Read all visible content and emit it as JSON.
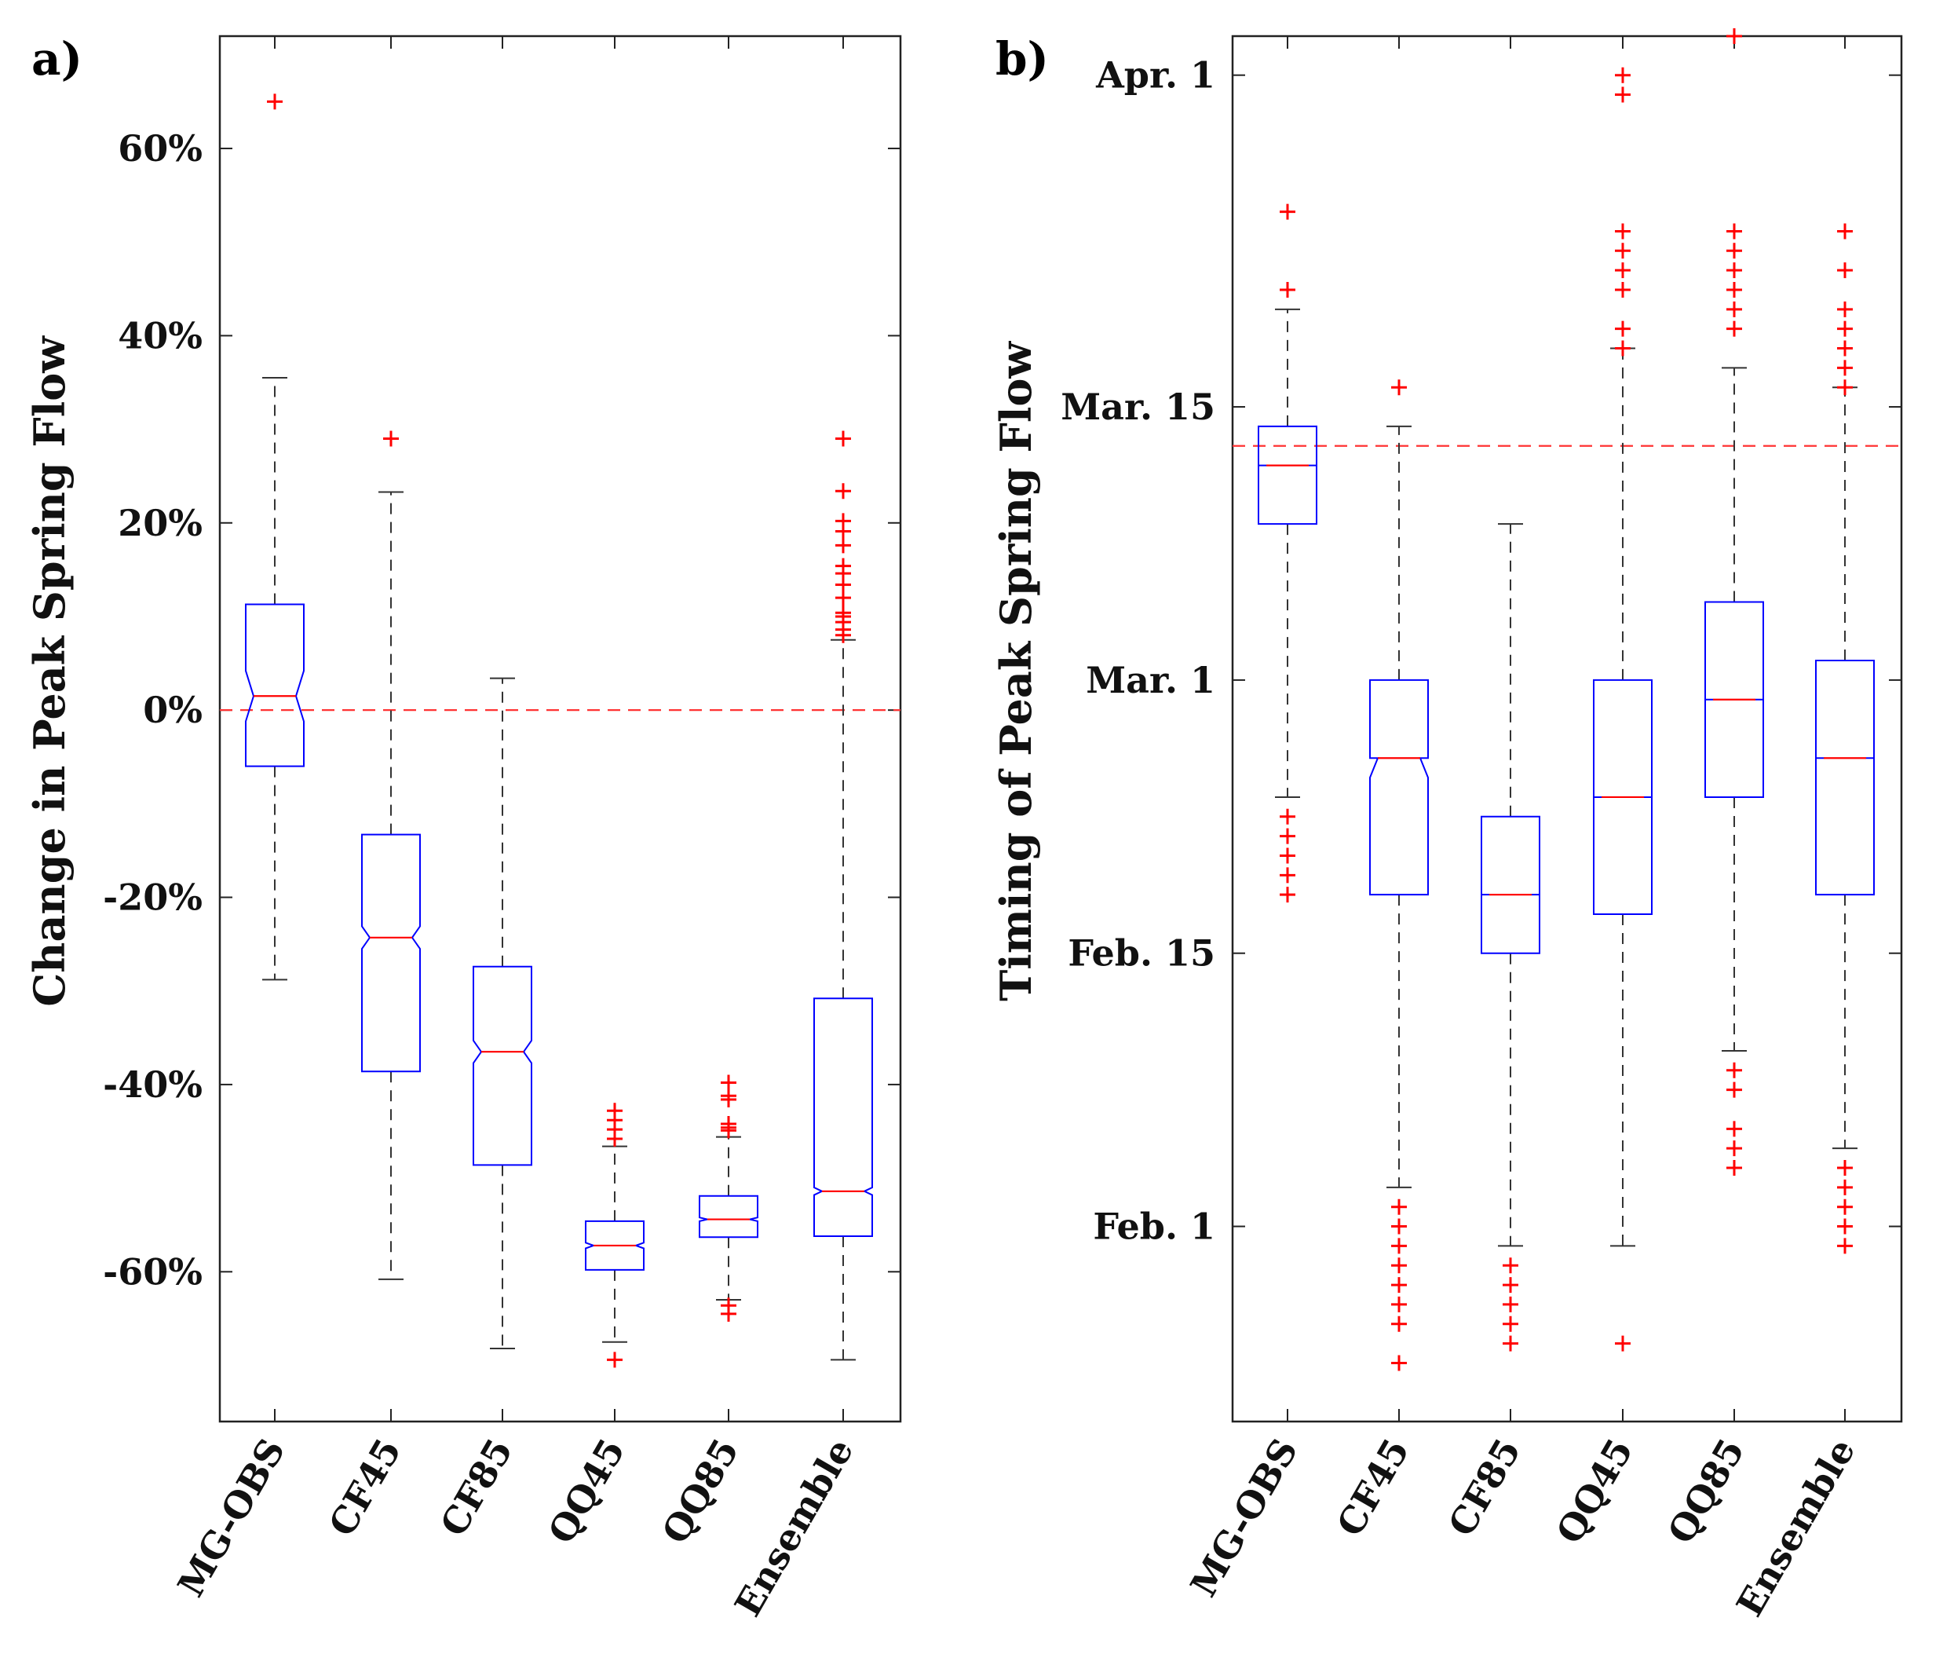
{
  "chart_data": [
    {
      "type": "boxplot",
      "panel_label": "a)",
      "xlabel": "",
      "ylabel": "Change in Peak Spring Flow",
      "categories": [
        "MG-OBS",
        "CF45",
        "CF85",
        "QQ45",
        "QQ85",
        "Ensemble"
      ],
      "ylim": [
        -76,
        72
      ],
      "yticks": [
        -60,
        -40,
        -20,
        0,
        20,
        40,
        60
      ],
      "ytick_labels": [
        "-60%",
        "-40%",
        "-20%",
        "0%",
        "20%",
        "40%",
        "60%"
      ],
      "reference_line": 0,
      "notched": true,
      "colors": {
        "box": "#0000ff",
        "median": "#ff0000",
        "outlier": "#ff0000",
        "whisker": "#333333",
        "reference": "#ff3333"
      },
      "boxes": [
        {
          "name": "MG-OBS",
          "whisker_low": -28.8,
          "q1": -6.0,
          "median": 1.5,
          "q3": 11.3,
          "whisker_high": 35.5,
          "notch_low": -1.2,
          "notch_high": 4.2,
          "outliers": [
            65
          ]
        },
        {
          "name": "CF45",
          "whisker_low": -60.8,
          "q1": -38.6,
          "median": -24.3,
          "q3": -13.3,
          "whisker_high": 23.3,
          "notch_low": -25.5,
          "notch_high": -23.1,
          "outliers": [
            29
          ]
        },
        {
          "name": "CF85",
          "whisker_low": -68.2,
          "q1": -48.6,
          "median": -36.5,
          "q3": -27.4,
          "whisker_high": 3.4,
          "notch_low": -37.7,
          "notch_high": -35.3,
          "outliers": []
        },
        {
          "name": "QQ45",
          "whisker_low": -67.5,
          "q1": -59.8,
          "median": -57.2,
          "q3": -54.6,
          "whisker_high": -46.6,
          "notch_low": -57.5,
          "notch_high": -56.9,
          "outliers": [
            -42.8,
            -43.8,
            -44.8,
            -45.8,
            -69.4
          ]
        },
        {
          "name": "QQ85",
          "whisker_low": -63.0,
          "q1": -56.3,
          "median": -54.4,
          "q3": -51.9,
          "whisker_high": -45.6,
          "notch_low": -54.6,
          "notch_high": -54.2,
          "outliers": [
            -39.8,
            -41.2,
            -41.6,
            -44.2,
            -44.6,
            -44.9,
            -63.6,
            -64.5
          ]
        },
        {
          "name": "Ensemble",
          "whisker_low": -69.4,
          "q1": -56.2,
          "median": -51.4,
          "q3": -30.8,
          "whisker_high": 7.5,
          "notch_low": -51.8,
          "notch_high": -51.0,
          "outliers": [
            29,
            23.4,
            20.2,
            19.1,
            17.6,
            15.4,
            14.6,
            13.4,
            12.0,
            10.4,
            10.0,
            9.4,
            8.6,
            8.0
          ]
        }
      ]
    },
    {
      "type": "boxplot",
      "panel_label": "b)",
      "xlabel": "",
      "ylabel": "Timing of Peak Spring Flow",
      "categories": [
        "MG-OBS",
        "CF45",
        "CF85",
        "QQ45",
        "QQ85",
        "Ensemble"
      ],
      "ylim": [
        "Jan. 22",
        "Apr. 3"
      ],
      "yticks": [
        "Feb. 1",
        "Feb. 15",
        "Mar. 1",
        "Mar. 15",
        "Apr. 1"
      ],
      "ytick_labels": [
        "Feb. 1",
        "Feb. 15",
        "Mar. 1",
        "Mar. 15",
        "Apr. 1"
      ],
      "reference_line": "Mar. 13",
      "notched": true,
      "colors": {
        "box": "#0000ff",
        "median": "#ff0000",
        "outlier": "#ff0000",
        "whisker": "#333333",
        "reference": "#ff3333"
      },
      "boxes": [
        {
          "name": "MG-OBS",
          "whisker_low": "Feb. 23",
          "q1": "Mar. 9",
          "median": "Mar. 12",
          "q3": "Mar. 14",
          "whisker_high": "Mar. 20",
          "notch_low": "Mar. 12",
          "notch_high": "Mar. 12",
          "outliers": [
            "Mar. 25",
            "Mar. 21",
            "Feb. 22",
            "Feb. 21",
            "Feb. 20",
            "Feb. 19",
            "Feb. 18"
          ]
        },
        {
          "name": "CF45",
          "whisker_low": "Feb. 3",
          "q1": "Feb. 18",
          "median": "Feb. 25",
          "q3": "Mar. 1",
          "whisker_high": "Mar. 14",
          "notch_low": "Feb. 24",
          "notch_high": "Feb. 25",
          "outliers": [
            "Mar. 16",
            "Feb. 2",
            "Feb. 1",
            "Jan. 31",
            "Jan. 30",
            "Jan. 29",
            "Jan. 28",
            "Jan. 27",
            "Jan. 25"
          ]
        },
        {
          "name": "CF85",
          "whisker_low": "Jan. 31",
          "q1": "Feb. 15",
          "median": "Feb. 18",
          "q3": "Feb. 22",
          "whisker_high": "Mar. 9",
          "notch_low": "Feb. 18",
          "notch_high": "Feb. 18",
          "outliers": [
            "Jan. 30",
            "Jan. 29",
            "Jan. 28",
            "Jan. 27",
            "Jan. 26"
          ]
        },
        {
          "name": "QQ45",
          "whisker_low": "Jan. 31",
          "q1": "Feb. 17",
          "median": "Feb. 23",
          "q3": "Mar. 1",
          "whisker_high": "Mar. 18",
          "notch_low": "Feb. 23",
          "notch_high": "Feb. 23",
          "outliers": [
            "Apr. 1",
            "Mar. 31",
            "Mar. 24",
            "Mar. 23",
            "Mar. 22",
            "Mar. 21",
            "Mar. 19",
            "Mar. 18",
            "Jan. 26"
          ]
        },
        {
          "name": "QQ85",
          "whisker_low": "Feb. 10",
          "q1": "Feb. 23",
          "median": "Feb. 28",
          "q3": "Mar. 5",
          "whisker_high": "Mar. 17",
          "notch_low": "Feb. 28",
          "notch_high": "Feb. 28",
          "outliers": [
            "Apr. 3",
            "Mar. 24",
            "Mar. 23",
            "Mar. 22",
            "Mar. 21",
            "Mar. 20",
            "Mar. 19",
            "Feb. 9",
            "Feb. 8",
            "Feb. 6",
            "Feb. 5",
            "Feb. 4"
          ]
        },
        {
          "name": "Ensemble",
          "whisker_low": "Feb. 5",
          "q1": "Feb. 18",
          "median": "Feb. 25",
          "q3": "Mar. 2",
          "whisker_high": "Mar. 16",
          "notch_low": "Feb. 25",
          "notch_high": "Feb. 25",
          "outliers": [
            "Mar. 24",
            "Mar. 22",
            "Mar. 20",
            "Mar. 19",
            "Mar. 18",
            "Mar. 17",
            "Mar. 16",
            "Feb. 4",
            "Feb. 3",
            "Feb. 2",
            "Feb. 1",
            "Jan. 31"
          ]
        }
      ]
    }
  ]
}
